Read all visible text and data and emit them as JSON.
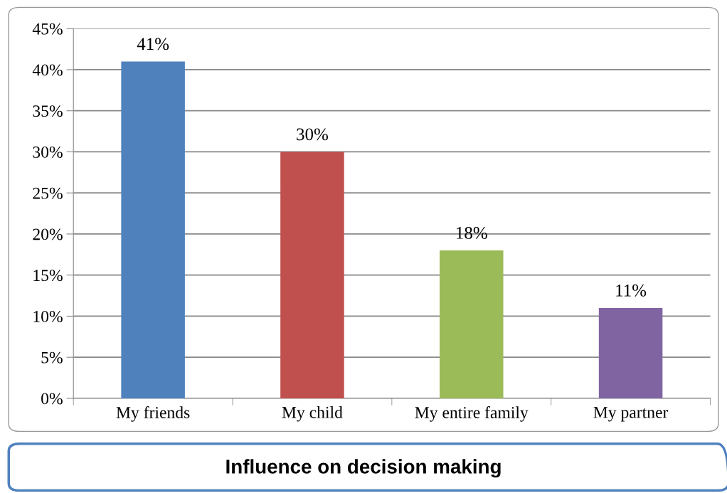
{
  "chart_data": {
    "type": "bar",
    "title": "Influence on decision making",
    "categories": [
      "My friends",
      "My child",
      "My entire family",
      "My partner"
    ],
    "values": [
      41,
      30,
      18,
      11
    ],
    "colors": [
      "#4f81bd",
      "#c0504d",
      "#9bbb59",
      "#8064a2"
    ],
    "value_labels": [
      "41%",
      "30%",
      "18%",
      "11%"
    ],
    "ylim": [
      0,
      45
    ],
    "yticks": [
      {
        "value": 0,
        "label": "0%"
      },
      {
        "value": 5,
        "label": "5%"
      },
      {
        "value": 10,
        "label": "10%"
      },
      {
        "value": 15,
        "label": "15%"
      },
      {
        "value": 20,
        "label": "20%"
      },
      {
        "value": 25,
        "label": "25%"
      },
      {
        "value": 30,
        "label": "30%"
      },
      {
        "value": 35,
        "label": "35%"
      },
      {
        "value": 40,
        "label": "40%"
      },
      {
        "value": 45,
        "label": "45%"
      }
    ],
    "grid": "y",
    "legend": false
  }
}
